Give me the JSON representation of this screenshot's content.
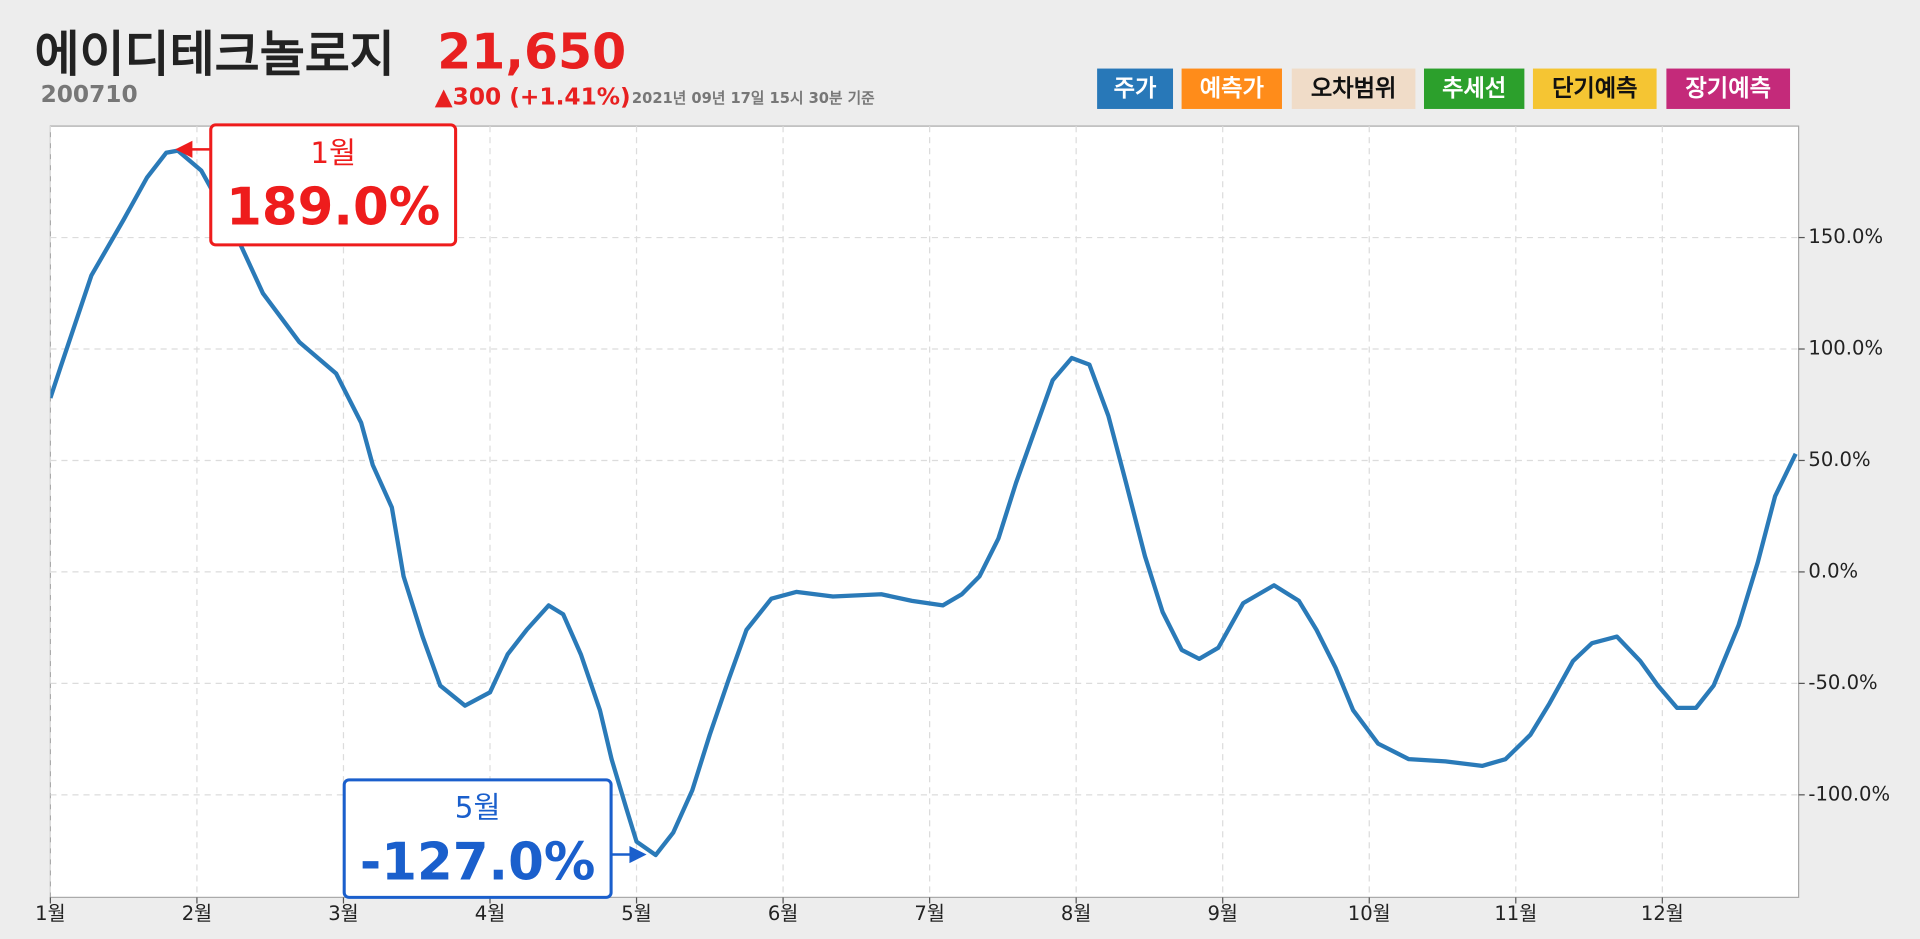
{
  "header": {
    "title": "에이디테크놀로지",
    "price": "21,650",
    "code": "200710",
    "change": "▲300 (+1.41%)",
    "timestamp": "2021년 09년 17일 15시 30분 기준"
  },
  "legend": [
    {
      "name": "주가",
      "color": "#2878b8"
    },
    {
      "name": "예측가",
      "color": "#ff8c1a"
    },
    {
      "name": "오차범위",
      "color": "#f0dcc8"
    },
    {
      "name": "추세선",
      "color": "#2ca02c"
    },
    {
      "name": "단기예측",
      "color": "#f5c533"
    },
    {
      "name": "장기예측",
      "color": "#c42a7a"
    }
  ],
  "chart_data": {
    "type": "line",
    "x": [
      1.0,
      1.07,
      1.28,
      1.5,
      1.66,
      1.79,
      1.87,
      2.03,
      2.24,
      2.45,
      2.7,
      2.95,
      3.12,
      3.2,
      3.33,
      3.41,
      3.54,
      3.66,
      3.83,
      4.0,
      4.12,
      4.25,
      4.4,
      4.5,
      4.62,
      4.75,
      4.83,
      4.93,
      5.0,
      5.13,
      5.25,
      5.38,
      5.5,
      5.63,
      5.75,
      5.92,
      6.09,
      6.34,
      6.67,
      6.88,
      7.09,
      7.22,
      7.34,
      7.47,
      7.59,
      7.72,
      7.84,
      7.97,
      8.09,
      8.22,
      8.34,
      8.47,
      8.59,
      8.72,
      8.84,
      8.97,
      9.14,
      9.35,
      9.52,
      9.64,
      9.77,
      9.89,
      10.06,
      10.27,
      10.52,
      10.77,
      10.93,
      11.1,
      11.23,
      11.39,
      11.52,
      11.69,
      11.85,
      11.97,
      12.1,
      12.23,
      12.35,
      12.52,
      12.65,
      12.77,
      12.91
    ],
    "series": [
      {
        "color": "#2a7ab8",
        "values": [
          78,
          92,
          133,
          158,
          177,
          188,
          189,
          180,
          155,
          125,
          103,
          89,
          67,
          48,
          29,
          -2,
          -29,
          -51,
          -60,
          -54,
          -37,
          -26,
          -15,
          -19,
          -37,
          -62,
          -84,
          -106,
          -121,
          -127,
          -117,
          -98,
          -73,
          -48,
          -26,
          -12,
          -9,
          -11,
          -10,
          -13,
          -15,
          -10,
          -2,
          15,
          40,
          64,
          86,
          96,
          93,
          70,
          40,
          7,
          -18,
          -35,
          -39,
          -34,
          -14,
          -6,
          -13,
          -26,
          -43,
          -62,
          -77,
          -84,
          -85,
          -87,
          -84,
          -73,
          -59,
          -40,
          -32,
          -29,
          -40,
          -51,
          -61,
          -61,
          -51,
          -24,
          4,
          34,
          53
        ]
      }
    ],
    "xlim": [
      1,
      12.93
    ],
    "xticks": [
      {
        "value": 1,
        "label": "1월"
      },
      {
        "value": 2,
        "label": "2월"
      },
      {
        "value": 3,
        "label": "3월"
      },
      {
        "value": 4,
        "label": "4월"
      },
      {
        "value": 5,
        "label": "5월"
      },
      {
        "value": 6,
        "label": "6월"
      },
      {
        "value": 7,
        "label": "7월"
      },
      {
        "value": 8,
        "label": "8월"
      },
      {
        "value": 9,
        "label": "9월"
      },
      {
        "value": 10,
        "label": "10월"
      },
      {
        "value": 11,
        "label": "11월"
      },
      {
        "value": 12,
        "label": "12월"
      }
    ],
    "ylim": [
      -146,
      200
    ],
    "yticks": [
      {
        "value": 150,
        "label": "150.0%"
      },
      {
        "value": 100,
        "label": "100.0%"
      },
      {
        "value": 50,
        "label": "50.0%"
      },
      {
        "value": 0,
        "label": "0.0%"
      },
      {
        "value": -50,
        "label": "-50.0%"
      },
      {
        "value": -100,
        "label": "-100.0%"
      }
    ],
    "grid": true,
    "annotations": [
      {
        "label": "1월",
        "text": "189.0%",
        "color": "#ee1c1c"
      },
      {
        "label": "5월",
        "text": "-127.0%",
        "color": "#1a5fcc"
      }
    ]
  }
}
